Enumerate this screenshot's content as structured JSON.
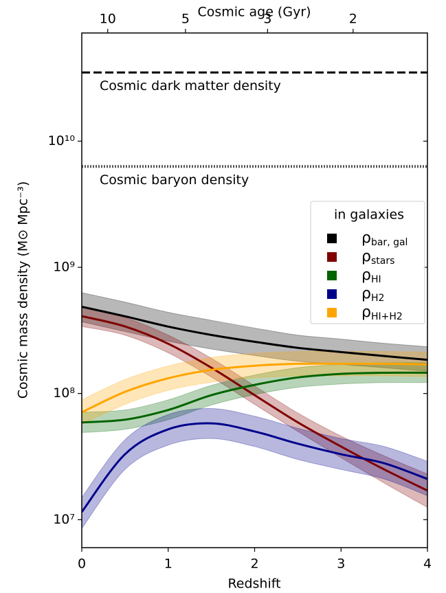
{
  "chart_data": {
    "type": "line",
    "xlabel": "Redshift",
    "ylabel": "Cosmic mass density (M⊙ Mpc⁻³)",
    "x2label": "Cosmic age (Gyr)",
    "log_y": true,
    "legend_title": "in galaxies",
    "legend_position": "right",
    "x": [
      0,
      0.5,
      1,
      1.5,
      2,
      2.5,
      3,
      3.5,
      4
    ],
    "xlim": [
      0,
      4
    ],
    "xticks": [
      0,
      1,
      2,
      3,
      4
    ],
    "x2ticks": [
      {
        "value": 0.3,
        "label": "10"
      },
      {
        "value": 1.2,
        "label": "5"
      },
      {
        "value": 2.15,
        "label": "3"
      },
      {
        "value": 3.14,
        "label": "2"
      }
    ],
    "ylim": [
      6000000,
      72000000000
    ],
    "yticks": [
      {
        "value": 10000000,
        "label": "10⁷"
      },
      {
        "value": 100000000,
        "label": "10⁸"
      },
      {
        "value": 1000000000,
        "label": "10⁹"
      },
      {
        "value": 10000000000,
        "label": "10¹⁰"
      }
    ],
    "reference_lines": [
      {
        "label": "Cosmic dark matter density",
        "value": 35000000000,
        "style": "dashed"
      },
      {
        "label": "Cosmic baryon density",
        "value": 6300000000,
        "style": "dotted"
      }
    ],
    "series": [
      {
        "name": "ρ",
        "subscript": "bar, gal",
        "color": "#000000",
        "values": [
          487000000,
          409000000,
          339000000,
          291000000,
          257000000,
          230000000,
          213000000,
          198000000,
          185000000
        ],
        "upper": [
          630000000,
          530000000,
          440000000,
          380000000,
          330000000,
          290000000,
          270000000,
          250000000,
          235000000
        ],
        "lower": [
          370000000,
          310000000,
          260000000,
          225000000,
          200000000,
          180000000,
          170000000,
          160000000,
          150000000
        ]
      },
      {
        "name": "ρ",
        "subscript": "stars",
        "color": "#800000",
        "values": [
          410000000,
          340000000,
          248000000,
          160000000,
          97000000,
          59000000,
          38000000,
          25000000,
          17000000
        ],
        "upper": [
          490000000,
          400000000,
          290000000,
          190000000,
          115000000,
          70000000,
          46000000,
          32000000,
          23000000
        ],
        "lower": [
          340000000,
          290000000,
          210000000,
          135000000,
          82000000,
          50000000,
          31000000,
          19500000,
          12500000
        ]
      },
      {
        "name": "ρ",
        "subscript": "HI",
        "color": "#006400",
        "values": [
          59000000,
          62000000,
          74000000,
          97000000,
          117000000,
          134000000,
          143000000,
          146000000,
          146000000
        ],
        "upper": [
          71000000,
          74000000,
          89000000,
          116000000,
          140000000,
          160000000,
          170000000,
          175000000,
          175000000
        ],
        "lower": [
          49000000,
          52000000,
          62000000,
          81000000,
          98000000,
          112000000,
          119000000,
          122000000,
          122000000
        ]
      },
      {
        "name": "ρ",
        "subscript": "H2",
        "color": "#00008b",
        "values": [
          11500000,
          33000000,
          52000000,
          58000000,
          50000000,
          40000000,
          33000000,
          28000000,
          21000000
        ],
        "upper": [
          15000000,
          43000000,
          68000000,
          76000000,
          66000000,
          53000000,
          44000000,
          38000000,
          29000000
        ],
        "lower": [
          8500000,
          25000000,
          39000000,
          44000000,
          38000000,
          30000000,
          25000000,
          21000000,
          15500000
        ]
      },
      {
        "name": "ρ",
        "subscript": "HI+H2",
        "color": "#ffa500",
        "values": [
          71000000,
          103000000,
          132000000,
          154000000,
          166000000,
          172000000,
          172000000,
          172000000,
          170000000
        ],
        "upper": [
          89000000,
          129000000,
          165000000,
          193000000,
          208000000,
          215000000,
          215000000,
          215000000,
          213000000
        ],
        "lower": [
          57000000,
          82000000,
          106000000,
          123000000,
          133000000,
          138000000,
          138000000,
          138000000,
          136000000
        ]
      }
    ]
  }
}
